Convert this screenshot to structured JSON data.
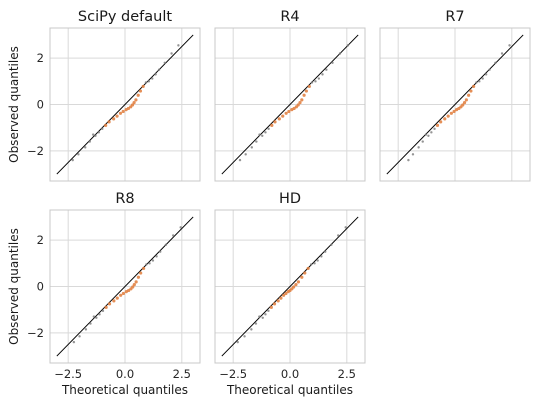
{
  "chart_data": {
    "type": "scatter",
    "xlabel": "Theoretical quantiles",
    "ylabel": "Observed quantiles",
    "xlim": [
      -3.3,
      3.3
    ],
    "ylim": [
      -3.3,
      3.3
    ],
    "xticks": [
      -2.5,
      0.0,
      2.5
    ],
    "xtick_labels": [
      "−2.5",
      "0.0",
      "2.5"
    ],
    "yticks": [
      -2,
      0,
      2
    ],
    "ytick_labels": [
      "−2",
      "0",
      "2"
    ],
    "grid": true,
    "reference_line": {
      "from": [
        -3.0,
        -3.0
      ],
      "to": [
        3.0,
        3.0
      ],
      "color": "#000000"
    },
    "colors": {
      "tail_points": "#7a7a7a",
      "center_points": "#e07b39",
      "grid": "#d9d9d9",
      "frame": "#c8c8c8"
    },
    "panels": [
      {
        "title": "SciPy default",
        "points": [
          [
            -2.3,
            -2.4
          ],
          [
            -2.05,
            -2.15
          ],
          [
            -1.75,
            -1.85
          ],
          [
            -1.55,
            -1.6
          ],
          [
            -1.4,
            -1.3
          ],
          [
            -1.3,
            -1.35
          ],
          [
            -1.15,
            -1.2
          ],
          [
            -1.0,
            -1.05
          ],
          [
            -0.85,
            -0.9
          ],
          [
            -0.7,
            -0.75
          ],
          [
            -0.5,
            -0.62
          ],
          [
            -0.35,
            -0.5
          ],
          [
            -0.2,
            -0.38
          ],
          [
            -0.08,
            -0.3
          ],
          [
            0.05,
            -0.22
          ],
          [
            0.15,
            -0.17
          ],
          [
            0.25,
            -0.1
          ],
          [
            0.33,
            -0.02
          ],
          [
            0.4,
            0.08
          ],
          [
            0.48,
            0.2
          ],
          [
            0.58,
            0.4
          ],
          [
            0.68,
            0.58
          ],
          [
            0.8,
            0.78
          ],
          [
            0.92,
            0.95
          ],
          [
            1.05,
            1.0
          ],
          [
            1.2,
            1.12
          ],
          [
            1.35,
            1.3
          ],
          [
            1.5,
            1.5
          ],
          [
            1.75,
            1.8
          ],
          [
            2.05,
            2.2
          ],
          [
            2.35,
            2.55
          ]
        ]
      },
      {
        "title": "R4",
        "points": [
          [
            -2.2,
            -2.4
          ],
          [
            -1.95,
            -2.15
          ],
          [
            -1.68,
            -1.85
          ],
          [
            -1.48,
            -1.6
          ],
          [
            -1.34,
            -1.3
          ],
          [
            -1.22,
            -1.35
          ],
          [
            -1.08,
            -1.2
          ],
          [
            -0.94,
            -1.05
          ],
          [
            -0.8,
            -0.9
          ],
          [
            -0.66,
            -0.75
          ],
          [
            -0.47,
            -0.62
          ],
          [
            -0.32,
            -0.5
          ],
          [
            -0.17,
            -0.38
          ],
          [
            -0.05,
            -0.3
          ],
          [
            0.08,
            -0.22
          ],
          [
            0.18,
            -0.17
          ],
          [
            0.28,
            -0.1
          ],
          [
            0.36,
            -0.02
          ],
          [
            0.44,
            0.08
          ],
          [
            0.52,
            0.2
          ],
          [
            0.62,
            0.4
          ],
          [
            0.72,
            0.58
          ],
          [
            0.85,
            0.78
          ],
          [
            0.97,
            0.95
          ],
          [
            1.12,
            1.0
          ],
          [
            1.27,
            1.12
          ],
          [
            1.43,
            1.3
          ],
          [
            1.6,
            1.5
          ],
          [
            1.87,
            1.8
          ],
          [
            2.2,
            2.2
          ],
          [
            2.55,
            2.55
          ]
        ]
      },
      {
        "title": "R7",
        "points": [
          [
            -2.05,
            -2.4
          ],
          [
            -1.85,
            -2.15
          ],
          [
            -1.6,
            -1.85
          ],
          [
            -1.42,
            -1.6
          ],
          [
            -1.28,
            -1.3
          ],
          [
            -1.17,
            -1.35
          ],
          [
            -1.04,
            -1.2
          ],
          [
            -0.9,
            -1.05
          ],
          [
            -0.77,
            -0.9
          ],
          [
            -0.63,
            -0.75
          ],
          [
            -0.45,
            -0.62
          ],
          [
            -0.3,
            -0.5
          ],
          [
            -0.16,
            -0.38
          ],
          [
            -0.04,
            -0.3
          ],
          [
            0.07,
            -0.22
          ],
          [
            0.17,
            -0.17
          ],
          [
            0.26,
            -0.1
          ],
          [
            0.34,
            -0.02
          ],
          [
            0.42,
            0.08
          ],
          [
            0.5,
            0.2
          ],
          [
            0.6,
            0.4
          ],
          [
            0.7,
            0.58
          ],
          [
            0.82,
            0.78
          ],
          [
            0.94,
            0.95
          ],
          [
            1.07,
            1.0
          ],
          [
            1.22,
            1.12
          ],
          [
            1.37,
            1.3
          ],
          [
            1.52,
            1.5
          ],
          [
            1.78,
            1.8
          ],
          [
            2.07,
            2.2
          ],
          [
            2.4,
            2.55
          ]
        ]
      },
      {
        "title": "R8",
        "points": [
          [
            -2.25,
            -2.4
          ],
          [
            -2.0,
            -2.15
          ],
          [
            -1.72,
            -1.85
          ],
          [
            -1.52,
            -1.6
          ],
          [
            -1.37,
            -1.3
          ],
          [
            -1.26,
            -1.35
          ],
          [
            -1.12,
            -1.2
          ],
          [
            -0.97,
            -1.05
          ],
          [
            -0.83,
            -0.9
          ],
          [
            -0.68,
            -0.75
          ],
          [
            -0.49,
            -0.62
          ],
          [
            -0.34,
            -0.5
          ],
          [
            -0.19,
            -0.38
          ],
          [
            -0.07,
            -0.3
          ],
          [
            0.06,
            -0.22
          ],
          [
            0.16,
            -0.17
          ],
          [
            0.26,
            -0.1
          ],
          [
            0.34,
            -0.02
          ],
          [
            0.41,
            0.08
          ],
          [
            0.49,
            0.2
          ],
          [
            0.59,
            0.4
          ],
          [
            0.69,
            0.58
          ],
          [
            0.82,
            0.78
          ],
          [
            0.94,
            0.95
          ],
          [
            1.08,
            1.0
          ],
          [
            1.23,
            1.12
          ],
          [
            1.39,
            1.3
          ],
          [
            1.55,
            1.5
          ],
          [
            1.8,
            1.8
          ],
          [
            2.12,
            2.2
          ],
          [
            2.45,
            2.55
          ]
        ]
      },
      {
        "title": "HD",
        "points": [
          [
            -2.3,
            -2.4
          ],
          [
            -2.0,
            -2.15
          ],
          [
            -1.7,
            -1.85
          ],
          [
            -1.5,
            -1.6
          ],
          [
            -1.35,
            -1.3
          ],
          [
            -1.2,
            -1.35
          ],
          [
            -1.08,
            -1.2
          ],
          [
            -0.95,
            -1.05
          ],
          [
            -0.82,
            -0.9
          ],
          [
            -0.68,
            -0.75
          ],
          [
            -0.52,
            -0.62
          ],
          [
            -0.4,
            -0.5
          ],
          [
            -0.28,
            -0.38
          ],
          [
            -0.18,
            -0.3
          ],
          [
            -0.08,
            -0.22
          ],
          [
            0.0,
            -0.17
          ],
          [
            0.08,
            -0.1
          ],
          [
            0.16,
            -0.02
          ],
          [
            0.26,
            0.08
          ],
          [
            0.37,
            0.2
          ],
          [
            0.52,
            0.4
          ],
          [
            0.65,
            0.58
          ],
          [
            0.8,
            0.78
          ],
          [
            0.93,
            0.95
          ],
          [
            1.08,
            1.0
          ],
          [
            1.22,
            1.12
          ],
          [
            1.38,
            1.3
          ],
          [
            1.55,
            1.5
          ],
          [
            1.82,
            1.8
          ],
          [
            2.12,
            2.2
          ],
          [
            2.45,
            2.55
          ]
        ]
      }
    ]
  }
}
